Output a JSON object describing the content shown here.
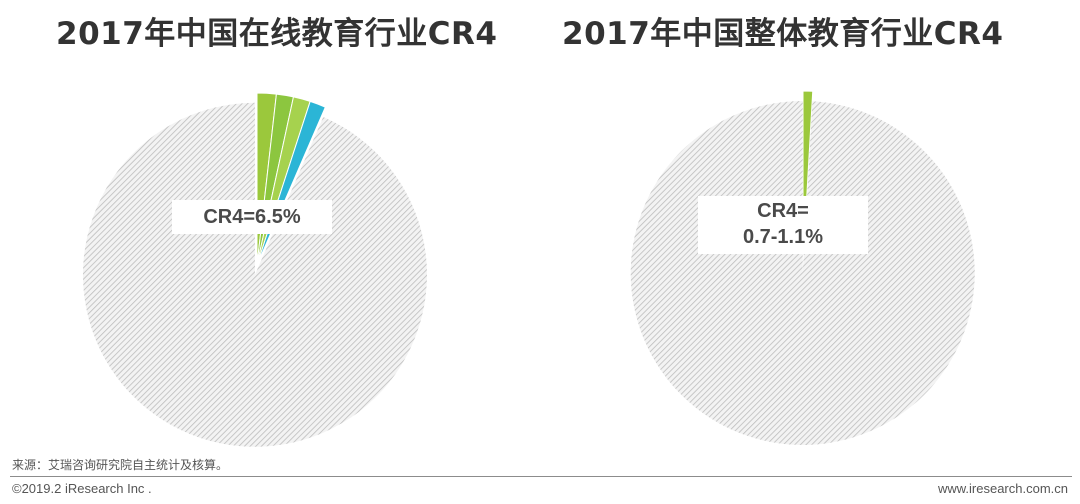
{
  "chart_data": [
    {
      "type": "pie",
      "title": "2017年中国在线教育行业CR4",
      "annotation": "CR4=6.5%",
      "slices": [
        {
          "value": 1.8,
          "color": "#9bc83c"
        },
        {
          "value": 1.6,
          "color": "#8cc63f"
        },
        {
          "value": 1.6,
          "color": "#a6d24e"
        },
        {
          "value": 1.5,
          "color": "#2bb5d6"
        },
        {
          "value": 93.5,
          "color": "#cccccc",
          "pattern": "hatch"
        }
      ],
      "explode": [
        0,
        0,
        0,
        0,
        1
      ]
    },
    {
      "type": "pie",
      "title": "2017年中国整体教育行业CR4",
      "annotation_lines": [
        "CR4=",
        "0.7-1.1%"
      ],
      "slices": [
        {
          "value": 0.9,
          "color": "#9bc83c"
        },
        {
          "value": 99.1,
          "color": "#cccccc",
          "pattern": "hatch"
        }
      ],
      "explode": [
        0,
        1
      ]
    }
  ],
  "footer": {
    "source": "来源：艾瑞咨询研究院自主统计及核算。",
    "copyright": "©2019.2 iResearch Inc .",
    "website": "www.iresearch.com.cn"
  }
}
